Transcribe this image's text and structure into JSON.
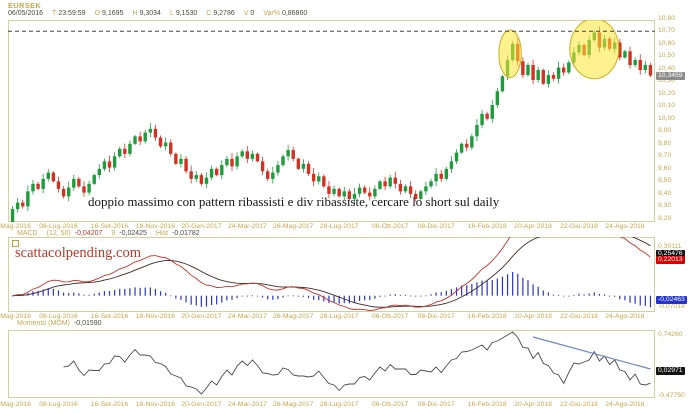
{
  "header": {
    "symbol": "EURSEK",
    "info": [
      {
        "label": "",
        "value": "06/05/2016"
      },
      {
        "label": "T",
        "value": "23:59:59"
      },
      {
        "label": "O",
        "value": "9,1695"
      },
      {
        "label": "H",
        "value": "9,3034"
      },
      {
        "label": "L",
        "value": "9,1530"
      },
      {
        "label": "C",
        "value": "9,2786"
      },
      {
        "label": "V",
        "value": "0"
      },
      {
        "label": "Var%",
        "value": "0,86860"
      }
    ]
  },
  "annotation": "doppio massimo con pattern ribassisti e div ribassiste, cercare lo short sul daily",
  "watermark": "scattacolpending.com",
  "indicator_rows": {
    "macd": [
      {
        "text": "MACD",
        "color": "gold"
      },
      {
        "text": "(12, 50)",
        "color": "gold"
      },
      {
        "text": "-0,04207",
        "color": "red"
      },
      {
        "text": "9",
        "color": "gold"
      },
      {
        "text": "-0,02425",
        "color": "dark"
      },
      {
        "text": "Hist",
        "color": "gold"
      },
      {
        "text": "-0,01782",
        "color": "dark"
      }
    ],
    "momentum": [
      {
        "text": "Momento (MOM)",
        "color": "gold"
      },
      {
        "text": "-0,01590",
        "color": "dark"
      }
    ]
  },
  "colors": {
    "label_gold": "#c6a84f",
    "value_dark": "#4a4a42",
    "red": "#c0382a",
    "candle_up": "#1f9b3e",
    "candle_down": "#d03224",
    "panel_border": "#d8cf9f",
    "dashed_line": "#444444",
    "macd_line": "#c8322a",
    "signal_line": "#402a28",
    "hist_blue": "#2a35c8",
    "momentum_line": "#4a4a4a",
    "trendline_blue": "#6b86c8",
    "ellipse_fill": "#ffe633",
    "ellipse_stroke": "#cfae1d",
    "badge_gray": "#8c8c8c",
    "badge_dark": "#141414",
    "badge_red": "#d40000",
    "badge_blue": "#2433cc"
  },
  "chart_data": [
    {
      "type": "candlestick",
      "title": "EURSEK weekly",
      "x_labels": [
        "6-Mag-2016",
        "08-Lug-2016",
        "16-Set-2016",
        "18-Nov-2016",
        "20-Gen-2017",
        "24-Mar-2017",
        "26-Mag-2017",
        "28-Lug-2017",
        "06-Ott-2017",
        "08-Dic-2017",
        "16-Feb-2018",
        "20-Apr-2018",
        "22-Giu-2018",
        "24-Ago-2018"
      ],
      "x_label_bars": [
        0,
        9,
        19,
        28,
        37,
        46,
        55,
        64,
        74,
        83,
        93,
        102,
        111,
        120
      ],
      "first_open": 9.1695,
      "first_high": 9.3034,
      "first_low": 9.153,
      "closes": [
        9.2786,
        9.33,
        9.3,
        9.42,
        9.48,
        9.44,
        9.52,
        9.57,
        9.5,
        9.44,
        9.38,
        9.45,
        9.52,
        9.46,
        9.41,
        9.48,
        9.55,
        9.6,
        9.66,
        9.61,
        9.7,
        9.76,
        9.72,
        9.8,
        9.86,
        9.82,
        9.89,
        9.92,
        9.85,
        9.78,
        9.81,
        9.72,
        9.64,
        9.68,
        9.58,
        9.52,
        9.55,
        9.48,
        9.53,
        9.6,
        9.55,
        9.63,
        9.68,
        9.62,
        9.7,
        9.74,
        9.68,
        9.72,
        9.66,
        9.58,
        9.52,
        9.57,
        9.63,
        9.7,
        9.75,
        9.68,
        9.6,
        9.64,
        9.56,
        9.5,
        9.54,
        9.46,
        9.4,
        9.44,
        9.38,
        9.42,
        9.36,
        9.4,
        9.45,
        9.41,
        9.38,
        9.44,
        9.5,
        9.46,
        9.53,
        9.48,
        9.42,
        9.46,
        9.4,
        9.36,
        9.42,
        9.46,
        9.5,
        9.56,
        9.52,
        9.6,
        9.66,
        9.73,
        9.8,
        9.77,
        9.86,
        9.95,
        10.04,
        10.0,
        10.11,
        10.22,
        10.34,
        10.47,
        10.6,
        10.46,
        10.35,
        10.43,
        10.31,
        10.39,
        10.28,
        10.35,
        10.32,
        10.41,
        10.37,
        10.45,
        10.53,
        10.59,
        10.51,
        10.63,
        10.69,
        10.57,
        10.64,
        10.56,
        10.61,
        10.49,
        10.54,
        10.43,
        10.47,
        10.39,
        10.43,
        10.3459
      ],
      "y_ticks": [
        10.8,
        10.7,
        10.6,
        10.5,
        10.4,
        10.3,
        10.2,
        10.1,
        10.0,
        9.9,
        9.8,
        9.7,
        9.6,
        9.5,
        9.4,
        9.3,
        9.2
      ],
      "ylim": [
        9.175,
        10.79
      ],
      "last_price": 10.3459,
      "resistance_level": 10.7,
      "highlight_ellipses": [
        {
          "bar": 97.5,
          "price": 10.52,
          "rx_bars": 2.2,
          "ry_price": 0.19
        },
        {
          "bar": 114.0,
          "price": 10.56,
          "rx_bars": 4.8,
          "ry_price": 0.24
        }
      ]
    },
    {
      "type": "line+histogram",
      "name": "MACD",
      "params": [
        12,
        50,
        9
      ],
      "derived_from": "closes",
      "ylim": [
        -0.1,
        0.36
      ],
      "labels_right": [
        0.30111,
        -0.07019
      ],
      "boxes": [
        {
          "value": 0.25476,
          "style": "dark"
        },
        {
          "value": 0.22013,
          "style": "red"
        },
        {
          "value": -0.02463,
          "style": "blue"
        }
      ]
    },
    {
      "type": "line",
      "name": "Momento (MOM)",
      "period": 10,
      "derived_from": "closes",
      "ylim": [
        -0.52,
        0.84
      ],
      "labels_right": [
        0.7426,
        -0.4775
      ],
      "boxes": [
        {
          "value": 0.02971,
          "style": "dark"
        }
      ],
      "trendline": {
        "bar1": 102,
        "value1": 0.7,
        "bar2": 125,
        "value2": 0.06
      }
    }
  ]
}
